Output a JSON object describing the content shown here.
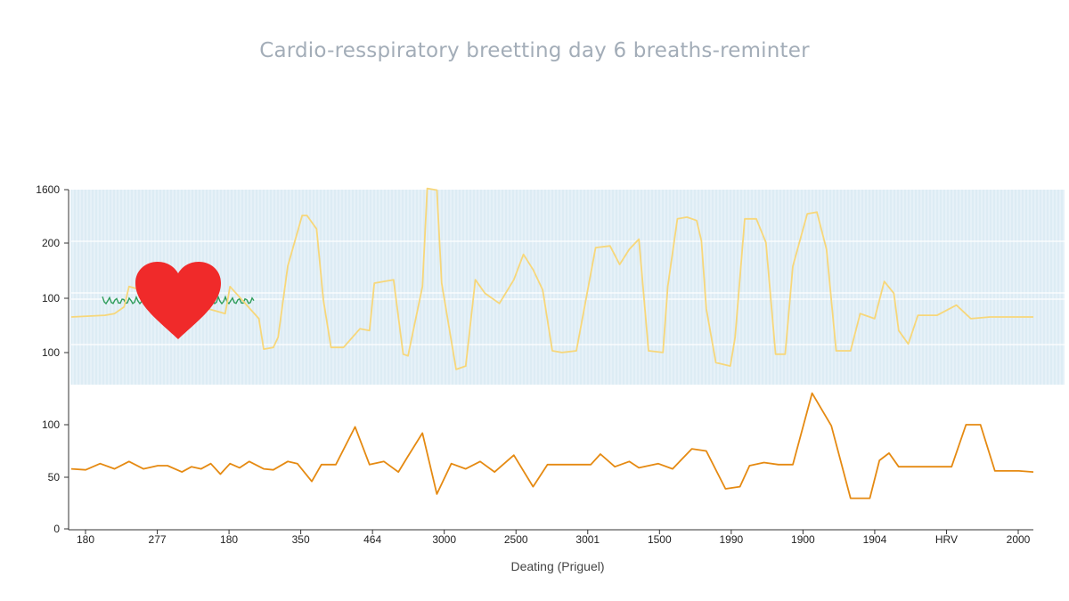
{
  "chart_data": {
    "type": "line",
    "title": "Cardio-resspiratory breetting day 6 breaths-reminter",
    "xlabel": "Deating (Priguel)",
    "x_tick_labels": [
      "180",
      "277",
      "180",
      "350",
      "464",
      "3000",
      "2500",
      "3001",
      "1500",
      "1990",
      "1900",
      "1904",
      "HRV",
      "2000"
    ],
    "highlight_tick": "HRV",
    "colors": {
      "upper_line": "#f7d77a",
      "lower_line": "#e58a12",
      "heart": "#f02a2a",
      "ecg": "#2f9d5b",
      "band_fill": "#e6f1f8",
      "band_lines": "#d4e6f1",
      "axis": "#333333",
      "highlight_tick": "#c0392b"
    },
    "icons": [
      "heart-icon"
    ],
    "panels": [
      {
        "name": "upper",
        "y_tick_labels": [
          "1600",
          "200",
          "100",
          "100"
        ],
        "x": [
          0,
          0.035,
          0.045,
          0.055,
          0.06,
          0.16,
          0.165,
          0.195,
          0.2,
          0.21,
          0.215,
          0.225,
          0.24,
          0.245,
          0.255,
          0.262,
          0.27,
          0.283,
          0.3,
          0.31,
          0.315,
          0.335,
          0.345,
          0.35,
          0.365,
          0.37,
          0.38,
          0.385,
          0.4,
          0.41,
          0.42,
          0.43,
          0.445,
          0.46,
          0.47,
          0.48,
          0.49,
          0.5,
          0.51,
          0.525,
          0.545,
          0.56,
          0.57,
          0.58,
          0.59,
          0.6,
          0.615,
          0.62,
          0.63,
          0.64,
          0.65,
          0.655,
          0.66,
          0.67,
          0.685,
          0.69,
          0.7,
          0.712,
          0.722,
          0.732,
          0.742,
          0.75,
          0.765,
          0.775,
          0.785,
          0.795,
          0.81,
          0.82,
          0.825,
          0.835,
          0.845,
          0.855,
          0.86,
          0.87,
          0.88,
          0.9,
          0.92,
          0.935,
          0.955,
          0.97,
          1.0
        ],
        "y": [
          100,
          101,
          102,
          106,
          118,
          102,
          118,
          99,
          81,
          82,
          88,
          130,
          160,
          160,
          152,
          110,
          82,
          82,
          93,
          92,
          120,
          122,
          78,
          77,
          118,
          176,
          175,
          120,
          69,
          71,
          122,
          114,
          108,
          122,
          137,
          128,
          116,
          80,
          79,
          80,
          141,
          142,
          131,
          140,
          146,
          80,
          79,
          118,
          158,
          159,
          157,
          145,
          105,
          73,
          71,
          88,
          158,
          158,
          144,
          78,
          78,
          130,
          161,
          162,
          140,
          80,
          80,
          102,
          101,
          99,
          121,
          114,
          92,
          84,
          101,
          101,
          107,
          99,
          100,
          100,
          100
        ]
      },
      {
        "name": "lower",
        "y_tick_labels": [
          "100",
          "50",
          "0"
        ],
        "ylim": [
          0,
          120
        ],
        "x": [
          0,
          0.015,
          0.03,
          0.045,
          0.06,
          0.075,
          0.09,
          0.1,
          0.115,
          0.125,
          0.135,
          0.145,
          0.155,
          0.165,
          0.175,
          0.185,
          0.2,
          0.21,
          0.225,
          0.235,
          0.25,
          0.26,
          0.275,
          0.295,
          0.31,
          0.325,
          0.34,
          0.35,
          0.365,
          0.38,
          0.395,
          0.41,
          0.425,
          0.44,
          0.46,
          0.48,
          0.495,
          0.51,
          0.52,
          0.53,
          0.54,
          0.55,
          0.565,
          0.58,
          0.59,
          0.61,
          0.625,
          0.645,
          0.66,
          0.68,
          0.695,
          0.705,
          0.72,
          0.735,
          0.75,
          0.77,
          0.79,
          0.81,
          0.83,
          0.84,
          0.85,
          0.86,
          0.87,
          0.89,
          0.915,
          0.93,
          0.945,
          0.96,
          0.975,
          0.985,
          1.0
        ],
        "y": [
          58,
          57,
          63,
          58,
          65,
          58,
          61,
          61,
          55,
          60,
          58,
          63,
          53,
          63,
          59,
          65,
          58,
          57,
          65,
          63,
          46,
          62,
          62,
          98,
          62,
          65,
          55,
          70,
          92,
          34,
          63,
          58,
          65,
          55,
          71,
          41,
          62,
          62,
          62,
          62,
          62,
          72,
          60,
          65,
          59,
          63,
          58,
          77,
          75,
          39,
          41,
          61,
          64,
          62,
          62,
          130,
          99,
          30,
          30,
          66,
          73,
          60,
          60,
          60,
          60,
          100,
          100,
          56,
          56,
          56,
          55
        ]
      }
    ]
  }
}
